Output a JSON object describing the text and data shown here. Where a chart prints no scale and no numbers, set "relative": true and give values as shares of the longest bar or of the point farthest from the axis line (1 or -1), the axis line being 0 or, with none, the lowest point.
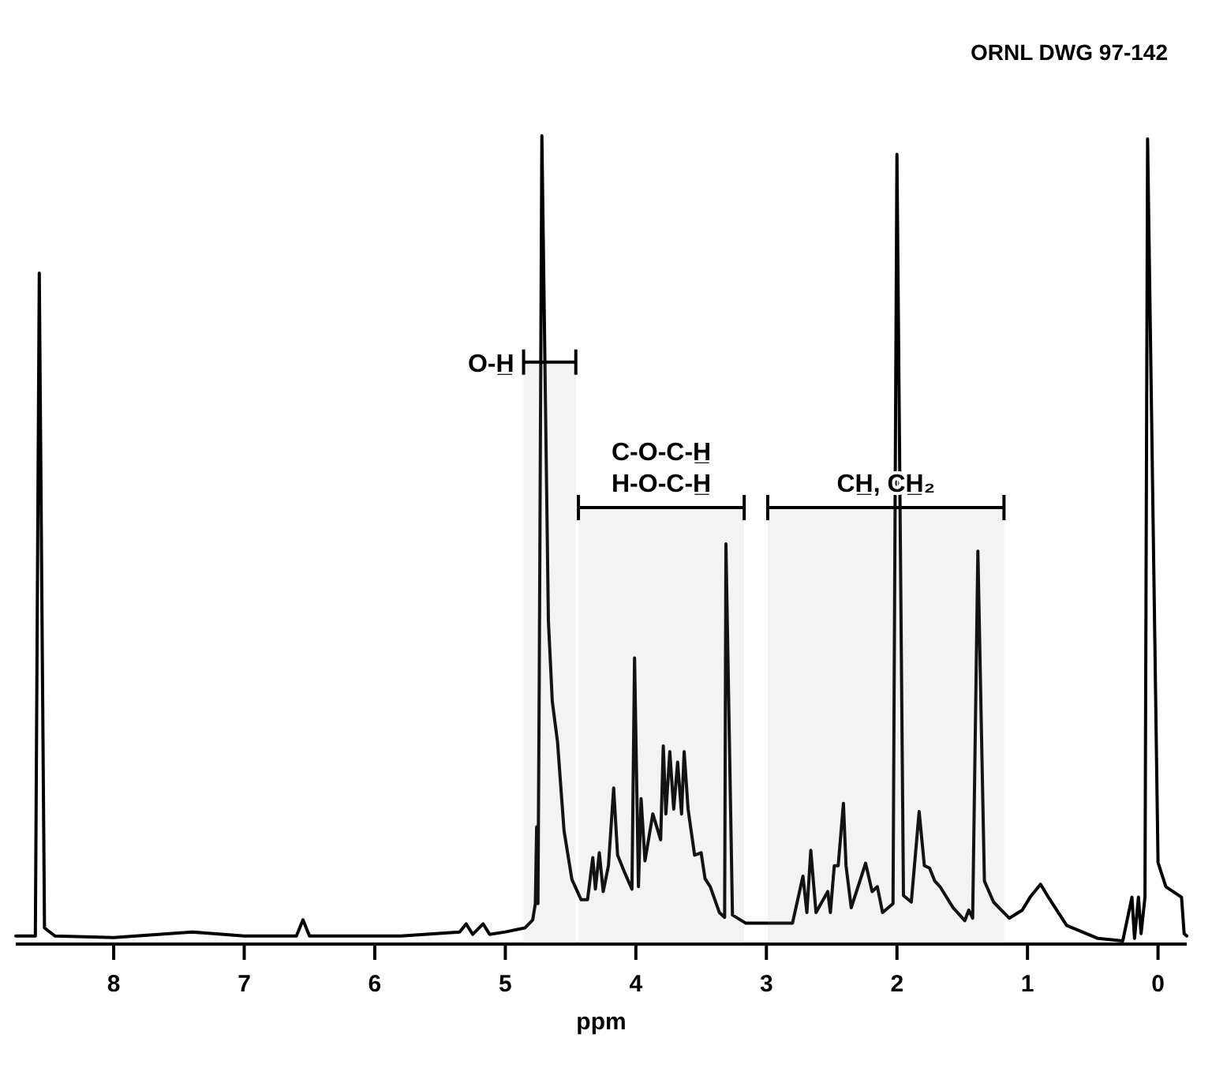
{
  "chart_data": {
    "type": "line",
    "relative": true,
    "xlabel": "ppm",
    "xlim": [
      8.75,
      -0.22
    ],
    "xticks": [
      8,
      7,
      6,
      5,
      4,
      3,
      2,
      1,
      0
    ],
    "grid": false,
    "marker": "none",
    "line_style": "solid",
    "annotations": [
      "ORNL DWG 97-142"
    ],
    "bands": [
      {
        "axis": "x",
        "from": 4.86,
        "to": 4.46,
        "label": "O-H̲"
      },
      {
        "axis": "x",
        "from": 4.44,
        "to": 3.17,
        "label": "C-O-C-H̲\nH-O-C-H̲"
      },
      {
        "axis": "x",
        "from": 2.99,
        "to": 1.18,
        "label": "CH̲, CH̲₂"
      }
    ],
    "series": [
      {
        "color": "#000000",
        "x": [
          8.75,
          8.6,
          8.57,
          8.53,
          8.45,
          8.0,
          7.4,
          7.0,
          6.6,
          6.55,
          6.5,
          5.8,
          5.35,
          5.3,
          5.25,
          5.17,
          5.12,
          5.0,
          4.85,
          4.79,
          4.77,
          4.76,
          4.75,
          4.74,
          4.72,
          4.67,
          4.64,
          4.6,
          4.55,
          4.49,
          4.42,
          4.37,
          4.33,
          4.31,
          4.28,
          4.25,
          4.21,
          4.17,
          4.14,
          4.09,
          4.03,
          4.01,
          3.98,
          3.96,
          3.93,
          3.87,
          3.81,
          3.79,
          3.77,
          3.74,
          3.71,
          3.68,
          3.65,
          3.63,
          3.6,
          3.55,
          3.5,
          3.47,
          3.43,
          3.36,
          3.32,
          3.31,
          3.26,
          3.16,
          2.92,
          2.8,
          2.72,
          2.69,
          2.66,
          2.62,
          2.53,
          2.51,
          2.48,
          2.45,
          2.41,
          2.39,
          2.35,
          2.24,
          2.19,
          2.15,
          2.11,
          2.03,
          2.0,
          1.95,
          1.89,
          1.83,
          1.79,
          1.75,
          1.71,
          1.67,
          1.57,
          1.48,
          1.45,
          1.42,
          1.38,
          1.33,
          1.26,
          1.14,
          1.04,
          0.98,
          0.9,
          0.84,
          0.7,
          0.46,
          0.27,
          0.2,
          0.18,
          0.15,
          0.13,
          0.1,
          0.08,
          0.0,
          -0.06,
          -0.18,
          -0.2,
          -0.22
        ],
        "values": [
          0.01,
          0.01,
          0.83,
          0.02,
          0.01,
          0.008,
          0.015,
          0.01,
          0.01,
          0.03,
          0.01,
          0.01,
          0.015,
          0.025,
          0.012,
          0.025,
          0.012,
          0.015,
          0.02,
          0.03,
          0.05,
          0.145,
          0.05,
          0.33,
          1.0,
          0.4,
          0.3,
          0.25,
          0.14,
          0.08,
          0.055,
          0.055,
          0.107,
          0.068,
          0.113,
          0.065,
          0.097,
          0.193,
          0.11,
          0.09,
          0.068,
          0.354,
          0.071,
          0.18,
          0.103,
          0.161,
          0.129,
          0.245,
          0.161,
          0.238,
          0.167,
          0.225,
          0.161,
          0.238,
          0.167,
          0.11,
          0.113,
          0.081,
          0.071,
          0.039,
          0.033,
          0.495,
          0.036,
          0.026,
          0.026,
          0.026,
          0.084,
          0.039,
          0.116,
          0.039,
          0.065,
          0.039,
          0.097,
          0.097,
          0.174,
          0.097,
          0.045,
          0.1,
          0.065,
          0.071,
          0.039,
          0.05,
          0.977,
          0.06,
          0.052,
          0.164,
          0.097,
          0.094,
          0.078,
          0.071,
          0.045,
          0.029,
          0.042,
          0.032,
          0.486,
          0.078,
          0.052,
          0.032,
          0.042,
          0.058,
          0.074,
          0.058,
          0.023,
          0.007,
          0.004,
          0.058,
          0.007,
          0.058,
          0.013,
          0.058,
          0.996,
          0.101,
          0.071,
          0.058,
          0.013,
          0.01
        ]
      }
    ]
  }
}
